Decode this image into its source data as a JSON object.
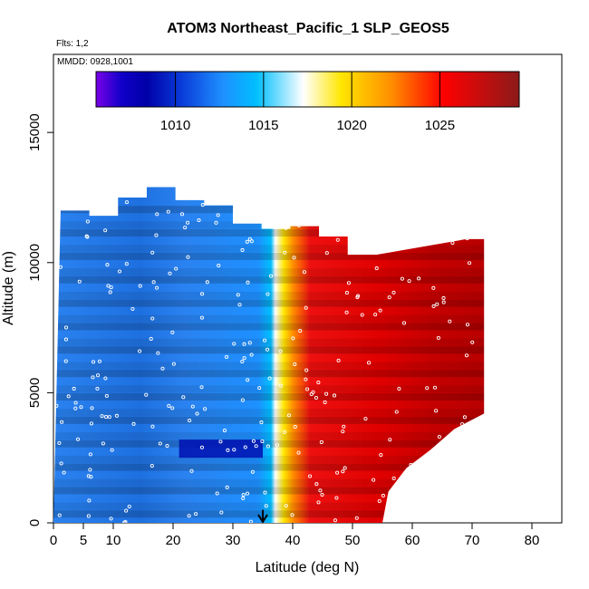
{
  "chart_data": {
    "type": "heatmap",
    "title": "ATOM3 Northeast_Pacific_1 SLP_GEOS5",
    "subtitle_flights": "Flts: 1,2",
    "subtitle_dates": "MMDD: 0928,1001",
    "xlabel": "Latitude (deg N)",
    "ylabel": "Altitude (m)",
    "xlim": [
      0,
      85
    ],
    "ylim": [
      0,
      18000
    ],
    "x_ticks": [
      0,
      5,
      10,
      20,
      30,
      40,
      50,
      60,
      70,
      80
    ],
    "y_ticks": [
      0,
      5000,
      10000,
      15000
    ],
    "colorbar": {
      "min": 1005.5,
      "max": 1029.5,
      "ticks": [
        1010,
        1015,
        1020,
        1025
      ],
      "colors": [
        "#7a00e8",
        "#0000a8",
        "#0a3ad8",
        "#1e90ff",
        "#00bfff",
        "#ffffff",
        "#ffe600",
        "#ff8c00",
        "#ff0000",
        "#8b1a1a"
      ]
    },
    "marker": {
      "x": 35,
      "label": "↓"
    },
    "series": [
      {
        "name": "",
        "alt_top": [
          12000,
          11800,
          12500,
          12900,
          12400,
          12200,
          11500,
          11300,
          11400,
          11000,
          10300
        ]
      },
      {
        "name": "",
        "lat_range": [
          0,
          72
        ]
      }
    ]
  }
}
